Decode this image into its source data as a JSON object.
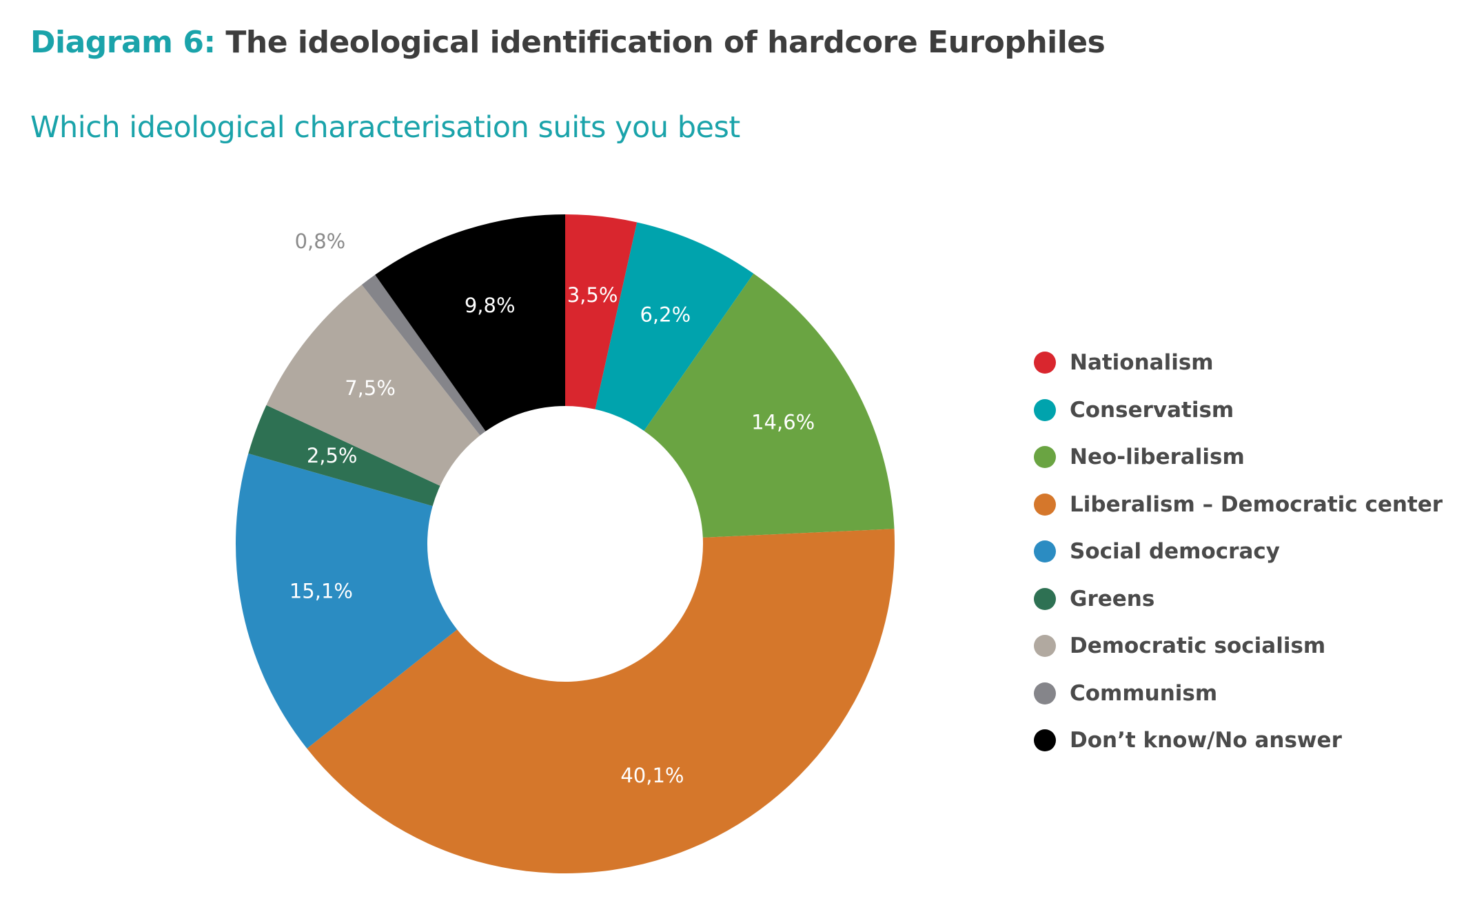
{
  "header": {
    "title_prefix": "Diagram 6:",
    "title_rest": "The ideological identification of hardcore Europhiles",
    "subtitle": "Which ideological characterisation suits you best"
  },
  "chart_data": {
    "type": "pie",
    "donut": true,
    "categories": [
      "Nationalism",
      "Conservatism",
      "Neo-liberalism",
      "Liberalism – Democratic center",
      "Social democracy",
      "Greens",
      "Democratic socialism",
      "Communism",
      "Don’t know/No answer"
    ],
    "values": [
      3.5,
      6.2,
      14.6,
      40.1,
      15.1,
      2.5,
      7.5,
      0.8,
      9.8
    ],
    "value_labels": [
      "3,5%",
      "6,2%",
      "14,6%",
      "40,1%",
      "15,1%",
      "2,5%",
      "7,5%",
      "0,8%",
      "9,8%"
    ],
    "colors": [
      "#d9262e",
      "#00a3ad",
      "#6aa442",
      "#d5772b",
      "#2b8cc2",
      "#2e7153",
      "#b1a9a0",
      "#85858a",
      "#000000"
    ],
    "label_colors": [
      "#ffffff",
      "#ffffff",
      "#ffffff",
      "#ffffff",
      "#ffffff",
      "#ffffff",
      "#ffffff",
      "#8a8a8a",
      "#ffffff"
    ],
    "legend_position": "right"
  }
}
